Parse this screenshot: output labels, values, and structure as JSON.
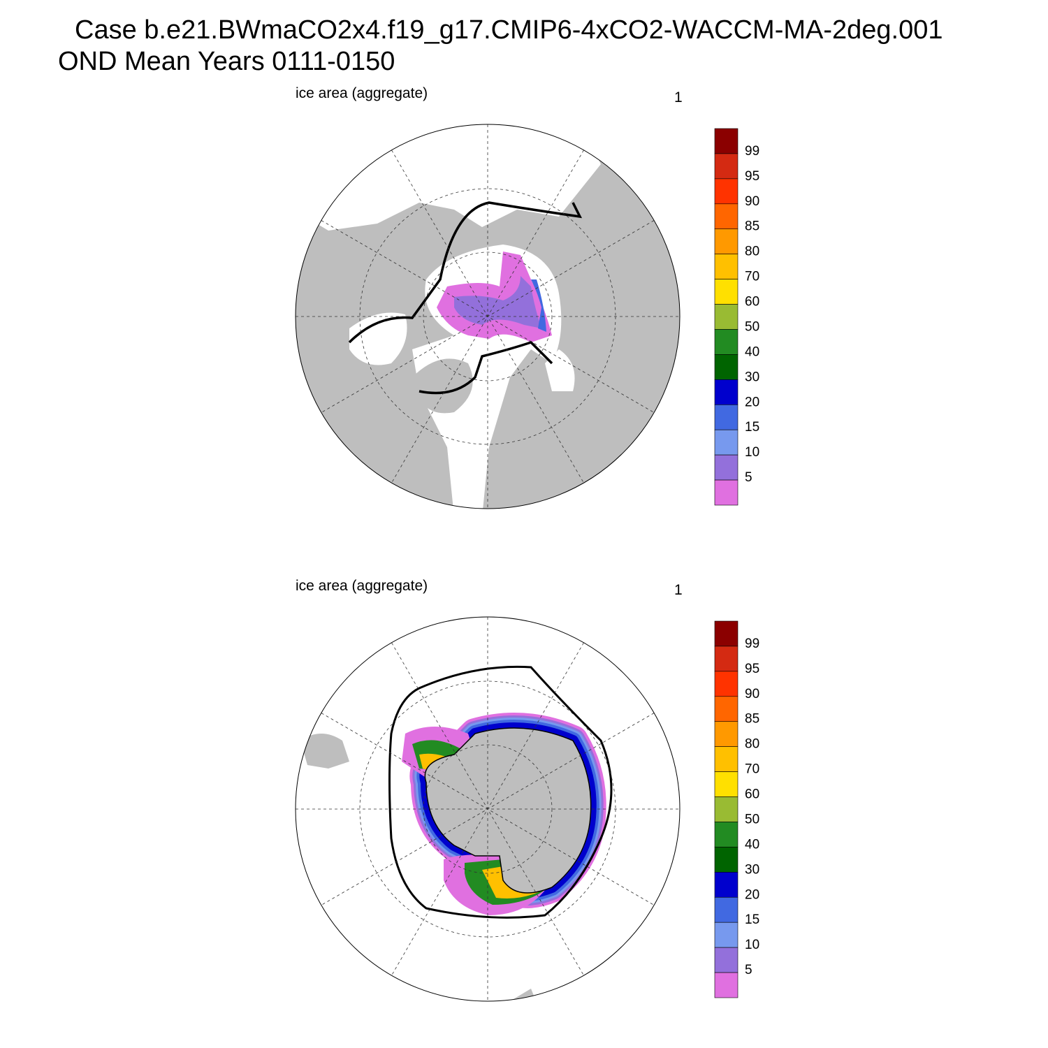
{
  "header": {
    "line1": "Case b.e21.BWmaCO2x4.f19_g17.CMIP6-4xCO2-WACCM-MA-2deg.001",
    "line2": "OND Mean   Years 0111-0150"
  },
  "panels": [
    {
      "title": "ice area  (aggregate)",
      "corner_label": "1",
      "colorbar": {
        "labels": [
          99,
          95,
          90,
          85,
          80,
          70,
          60,
          50,
          40,
          30,
          20,
          15,
          10,
          5
        ],
        "colors": [
          "#8b0000",
          "#d42a12",
          "#ff3300",
          "#ff6600",
          "#ff9900",
          "#ffc000",
          "#ffe000",
          "#99bb33",
          "#228b22",
          "#006400",
          "#0000cd",
          "#4169e1",
          "#7799ee",
          "#9370db",
          "#e070e0"
        ]
      }
    },
    {
      "title": "ice area  (aggregate)",
      "corner_label": "1",
      "colorbar": {
        "labels": [
          99,
          95,
          90,
          85,
          80,
          70,
          60,
          50,
          40,
          30,
          20,
          15,
          10,
          5
        ],
        "colors": [
          "#8b0000",
          "#d42a12",
          "#ff3300",
          "#ff6600",
          "#ff9900",
          "#ffc000",
          "#ffe000",
          "#99bb33",
          "#228b22",
          "#006400",
          "#0000cd",
          "#4169e1",
          "#7799ee",
          "#9370db",
          "#e070e0"
        ]
      }
    }
  ]
}
